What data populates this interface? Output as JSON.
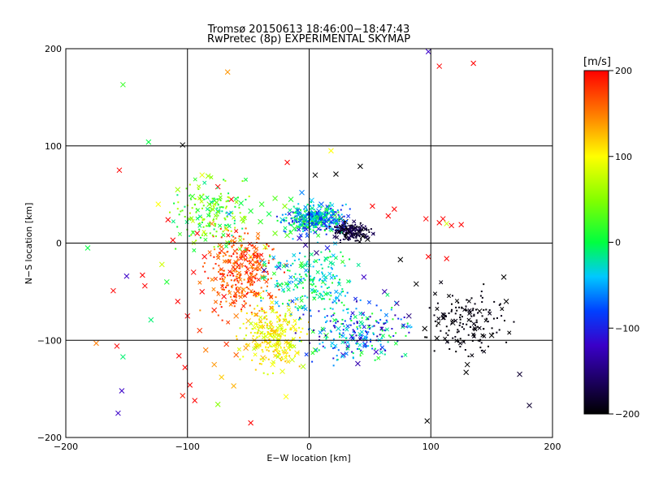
{
  "chart_data": {
    "type": "scatter",
    "title": "Tromsø 20150613 18:46:00−18:47:43",
    "subtitle": "RwPretec (8p) EXPERIMENTAL SKYMAP",
    "xlabel": "E−W location [km]",
    "ylabel": "N−S location [km]",
    "xlim": [
      -200,
      200
    ],
    "ylim": [
      -200,
      200
    ],
    "x_ticks": [
      -200,
      -100,
      0,
      100,
      200
    ],
    "y_ticks": [
      -200,
      -100,
      0,
      100,
      200
    ],
    "x_tick_labels": [
      "−200",
      "−100",
      "0",
      "100",
      "200"
    ],
    "y_tick_labels": [
      "−200",
      "−100",
      "0",
      "100",
      "200"
    ],
    "grid_lines": [
      -100,
      0,
      100
    ],
    "grid": true,
    "colorbar": {
      "unit_label": "[m/s]",
      "range": [
        -200,
        200
      ],
      "ticks": [
        200,
        100,
        0,
        -100,
        -200
      ],
      "tick_labels": [
        "200",
        "100",
        "0",
        "−100",
        "−200"
      ],
      "colormap": "rainbow (black-blue-cyan-green-yellow-red)"
    },
    "markers": [
      "x",
      "dot"
    ],
    "points": [
      {
        "x": -153,
        "y": 163,
        "v": 20,
        "m": "x"
      },
      {
        "x": -67,
        "y": 176,
        "v": 140,
        "m": "x"
      },
      {
        "x": -132,
        "y": 104,
        "v": 0,
        "m": "x"
      },
      {
        "x": -104,
        "y": 101,
        "v": -200,
        "m": "x"
      },
      {
        "x": -156,
        "y": 75,
        "v": 200,
        "m": "x"
      },
      {
        "x": 107,
        "y": 182,
        "v": 200,
        "m": "x"
      },
      {
        "x": 135,
        "y": 185,
        "v": 200,
        "m": "x"
      },
      {
        "x": 98,
        "y": 197,
        "v": -120,
        "m": "x"
      },
      {
        "x": -182,
        "y": -5,
        "v": 0,
        "m": "x"
      },
      {
        "x": -150,
        "y": -34,
        "v": -120,
        "m": "x"
      },
      {
        "x": -161,
        "y": -49,
        "v": 200,
        "m": "x"
      },
      {
        "x": -137,
        "y": -33,
        "v": 200,
        "m": "x"
      },
      {
        "x": -135,
        "y": -44,
        "v": 200,
        "m": "x"
      },
      {
        "x": -130,
        "y": -79,
        "v": -10,
        "m": "x"
      },
      {
        "x": -175,
        "y": -103,
        "v": 150,
        "m": "x"
      },
      {
        "x": -158,
        "y": -106,
        "v": 200,
        "m": "x"
      },
      {
        "x": -153,
        "y": -117,
        "v": -10,
        "m": "x"
      },
      {
        "x": -154,
        "y": -152,
        "v": -120,
        "m": "x"
      },
      {
        "x": -157,
        "y": -175,
        "v": -120,
        "m": "x"
      },
      {
        "x": -107,
        "y": -116,
        "v": 200,
        "m": "x"
      },
      {
        "x": -102,
        "y": -128,
        "v": 200,
        "m": "x"
      },
      {
        "x": -98,
        "y": -146,
        "v": 200,
        "m": "x"
      },
      {
        "x": -104,
        "y": -157,
        "v": 190,
        "m": "x"
      },
      {
        "x": -94,
        "y": -162,
        "v": 200,
        "m": "x"
      },
      {
        "x": -75,
        "y": -166,
        "v": 50,
        "m": "x"
      },
      {
        "x": -48,
        "y": -185,
        "v": 200,
        "m": "x"
      },
      {
        "x": -19,
        "y": -158,
        "v": 100,
        "m": "x"
      },
      {
        "x": 97,
        "y": -183,
        "v": -200,
        "m": "x"
      },
      {
        "x": 130,
        "y": -125,
        "v": -200,
        "m": "x"
      },
      {
        "x": 129,
        "y": -133,
        "v": -200,
        "m": "x"
      },
      {
        "x": 173,
        "y": -135,
        "v": -180,
        "m": "x"
      },
      {
        "x": 181,
        "y": -167,
        "v": -180,
        "m": "x"
      },
      {
        "x": 98,
        "y": -14,
        "v": 200,
        "m": "x"
      },
      {
        "x": 113,
        "y": -16,
        "v": 200,
        "m": "x"
      },
      {
        "x": 160,
        "y": -35,
        "v": -200,
        "m": "x"
      },
      {
        "x": 88,
        "y": -42,
        "v": -200,
        "m": "x"
      },
      {
        "x": 75,
        "y": -17,
        "v": -200,
        "m": "x"
      },
      {
        "x": 110,
        "y": 25,
        "v": 200,
        "m": "x"
      },
      {
        "x": 113,
        "y": 20,
        "v": 80,
        "m": "x"
      },
      {
        "x": 117,
        "y": 18,
        "v": 200,
        "m": "x"
      },
      {
        "x": 125,
        "y": 19,
        "v": 200,
        "m": "x"
      },
      {
        "x": 107,
        "y": 21,
        "v": 200,
        "m": "x"
      },
      {
        "x": 96,
        "y": 25,
        "v": 200,
        "m": "x"
      },
      {
        "x": 70,
        "y": 35,
        "v": 200,
        "m": "x"
      },
      {
        "x": 65,
        "y": 28,
        "v": 200,
        "m": "x"
      },
      {
        "x": 22,
        "y": 71,
        "v": -200,
        "m": "x"
      },
      {
        "x": 5,
        "y": 70,
        "v": -200,
        "m": "x"
      },
      {
        "x": 42,
        "y": 79,
        "v": -200,
        "m": "x"
      },
      {
        "x": 18,
        "y": 95,
        "v": 100,
        "m": "x"
      },
      {
        "x": -18,
        "y": 83,
        "v": 200,
        "m": "x"
      },
      {
        "x": -88,
        "y": 70,
        "v": 90,
        "m": "x"
      },
      {
        "x": -83,
        "y": 69,
        "v": 60,
        "m": "x"
      },
      {
        "x": -75,
        "y": 58,
        "v": 200,
        "m": "x"
      },
      {
        "x": -64,
        "y": 45,
        "v": 200,
        "m": "x"
      },
      {
        "x": -56,
        "y": 41,
        "v": 0,
        "m": "x"
      },
      {
        "x": -39,
        "y": 40,
        "v": 20,
        "m": "x"
      },
      {
        "x": -28,
        "y": 46,
        "v": 30,
        "m": "x"
      },
      {
        "x": -20,
        "y": 38,
        "v": 50,
        "m": "x"
      },
      {
        "x": -10,
        "y": 34,
        "v": -20,
        "m": "x"
      },
      {
        "x": -2,
        "y": 30,
        "v": -30,
        "m": "x"
      },
      {
        "x": 4,
        "y": 27,
        "v": -40,
        "m": "x"
      },
      {
        "x": 8,
        "y": 33,
        "v": -60,
        "m": "x"
      },
      {
        "x": 13,
        "y": 28,
        "v": -70,
        "m": "x"
      },
      {
        "x": 18,
        "y": 22,
        "v": -90,
        "m": "x"
      },
      {
        "x": 23,
        "y": 18,
        "v": -110,
        "m": "x"
      },
      {
        "x": 28,
        "y": 13,
        "v": -130,
        "m": "x"
      },
      {
        "x": 32,
        "y": 10,
        "v": -150,
        "m": "x"
      },
      {
        "x": 36,
        "y": 14,
        "v": -170,
        "m": "x"
      },
      {
        "x": 40,
        "y": 9,
        "v": -190,
        "m": "x"
      },
      {
        "x": 44,
        "y": 7,
        "v": -200,
        "m": "x"
      },
      {
        "x": 48,
        "y": 4,
        "v": -200,
        "m": "x"
      },
      {
        "x": 30,
        "y": 22,
        "v": -200,
        "m": "x"
      },
      {
        "x": 26,
        "y": 25,
        "v": -180,
        "m": "x"
      },
      {
        "x": 20,
        "y": 30,
        "v": -140,
        "m": "x"
      },
      {
        "x": -5,
        "y": 20,
        "v": -20,
        "m": "x"
      },
      {
        "x": -12,
        "y": 15,
        "v": 10,
        "m": "x"
      },
      {
        "x": -18,
        "y": 8,
        "v": 30,
        "m": "x"
      },
      {
        "x": -8,
        "y": 5,
        "v": -120,
        "m": "x"
      },
      {
        "x": -3,
        "y": -2,
        "v": -140,
        "m": "x"
      },
      {
        "x": 6,
        "y": -10,
        "v": -150,
        "m": "x"
      },
      {
        "x": 15,
        "y": -5,
        "v": -100,
        "m": "x"
      },
      {
        "x": -25,
        "y": -25,
        "v": -110,
        "m": "x"
      },
      {
        "x": -37,
        "y": -28,
        "v": -140,
        "m": "x"
      },
      {
        "x": -24,
        "y": -43,
        "v": -10,
        "m": "x"
      },
      {
        "x": -41,
        "y": -53,
        "v": 100,
        "m": "x"
      },
      {
        "x": -54,
        "y": -48,
        "v": 140,
        "m": "x"
      },
      {
        "x": -62,
        "y": -60,
        "v": 170,
        "m": "x"
      },
      {
        "x": -70,
        "y": -55,
        "v": 200,
        "m": "x"
      },
      {
        "x": -78,
        "y": -69,
        "v": 190,
        "m": "x"
      },
      {
        "x": -60,
        "y": -75,
        "v": 150,
        "m": "x"
      },
      {
        "x": -50,
        "y": -80,
        "v": 130,
        "m": "x"
      },
      {
        "x": -40,
        "y": -86,
        "v": 110,
        "m": "x"
      },
      {
        "x": -32,
        "y": -95,
        "v": 100,
        "m": "x"
      },
      {
        "x": -25,
        "y": -100,
        "v": 90,
        "m": "x"
      },
      {
        "x": -17,
        "y": -108,
        "v": 100,
        "m": "x"
      },
      {
        "x": -10,
        "y": -113,
        "v": 110,
        "m": "x"
      },
      {
        "x": -45,
        "y": -100,
        "v": 120,
        "m": "x"
      },
      {
        "x": -52,
        "y": -108,
        "v": 140,
        "m": "x"
      },
      {
        "x": -60,
        "y": -115,
        "v": 160,
        "m": "x"
      },
      {
        "x": -68,
        "y": -104,
        "v": 180,
        "m": "x"
      },
      {
        "x": -38,
        "y": -118,
        "v": 130,
        "m": "x"
      },
      {
        "x": -30,
        "y": -125,
        "v": 100,
        "m": "x"
      },
      {
        "x": -22,
        "y": -132,
        "v": 90,
        "m": "x"
      },
      {
        "x": -14,
        "y": -120,
        "v": 80,
        "m": "x"
      },
      {
        "x": -5,
        "y": -127,
        "v": 70,
        "m": "x"
      },
      {
        "x": 5,
        "y": -110,
        "v": 40,
        "m": "x"
      },
      {
        "x": 14,
        "y": -95,
        "v": 20,
        "m": "x"
      },
      {
        "x": 24,
        "y": -88,
        "v": -30,
        "m": "x"
      },
      {
        "x": 35,
        "y": -96,
        "v": -90,
        "m": "x"
      },
      {
        "x": 46,
        "y": -104,
        "v": -110,
        "m": "x"
      },
      {
        "x": 28,
        "y": -115,
        "v": -120,
        "m": "x"
      },
      {
        "x": 40,
        "y": -124,
        "v": -130,
        "m": "x"
      },
      {
        "x": 55,
        "y": -112,
        "v": -120,
        "m": "x"
      },
      {
        "x": -88,
        "y": -50,
        "v": 200,
        "m": "x"
      },
      {
        "x": -95,
        "y": -30,
        "v": 200,
        "m": "x"
      },
      {
        "x": -86,
        "y": -14,
        "v": 200,
        "m": "x"
      },
      {
        "x": -72,
        "y": -8,
        "v": 180,
        "m": "x"
      },
      {
        "x": -60,
        "y": -20,
        "v": 160,
        "m": "x"
      },
      {
        "x": -48,
        "y": -14,
        "v": 120,
        "m": "x"
      },
      {
        "x": -36,
        "y": -4,
        "v": 80,
        "m": "x"
      },
      {
        "x": -28,
        "y": 10,
        "v": 40,
        "m": "x"
      },
      {
        "x": -40,
        "y": 22,
        "v": 20,
        "m": "x"
      },
      {
        "x": -55,
        "y": 25,
        "v": 60,
        "m": "x"
      },
      {
        "x": -68,
        "y": 15,
        "v": 120,
        "m": "x"
      },
      {
        "x": -80,
        "y": 20,
        "v": 150,
        "m": "x"
      },
      {
        "x": -92,
        "y": 10,
        "v": 200,
        "m": "x"
      },
      {
        "x": -112,
        "y": 3,
        "v": 200,
        "m": "x"
      },
      {
        "x": -121,
        "y": -22,
        "v": 80,
        "m": "x"
      },
      {
        "x": -117,
        "y": -40,
        "v": 10,
        "m": "x"
      },
      {
        "x": -108,
        "y": -60,
        "v": 200,
        "m": "x"
      },
      {
        "x": -100,
        "y": -75,
        "v": 200,
        "m": "x"
      },
      {
        "x": -90,
        "y": -90,
        "v": 180,
        "m": "x"
      },
      {
        "x": -85,
        "y": -110,
        "v": 150,
        "m": "x"
      },
      {
        "x": -78,
        "y": -125,
        "v": 140,
        "m": "x"
      },
      {
        "x": -72,
        "y": -138,
        "v": 120,
        "m": "x"
      },
      {
        "x": -62,
        "y": -147,
        "v": 130,
        "m": "x"
      },
      {
        "x": -116,
        "y": 24,
        "v": 200,
        "m": "x"
      },
      {
        "x": -124,
        "y": 40,
        "v": 100,
        "m": "x"
      },
      {
        "x": -108,
        "y": 55,
        "v": 60,
        "m": "x"
      },
      {
        "x": -96,
        "y": 48,
        "v": 20,
        "m": "x"
      },
      {
        "x": -82,
        "y": 40,
        "v": 40,
        "m": "x"
      },
      {
        "x": -75,
        "y": 33,
        "v": -20,
        "m": "x"
      },
      {
        "x": -66,
        "y": 30,
        "v": -60,
        "m": "x"
      },
      {
        "x": -48,
        "y": 33,
        "v": 10,
        "m": "x"
      },
      {
        "x": -33,
        "y": 30,
        "v": 0,
        "m": "x"
      },
      {
        "x": -22,
        "y": 24,
        "v": -30,
        "m": "x"
      },
      {
        "x": -15,
        "y": 45,
        "v": 10,
        "m": "x"
      },
      {
        "x": -6,
        "y": 52,
        "v": -60,
        "m": "x"
      },
      {
        "x": 2,
        "y": 44,
        "v": -40,
        "m": "x"
      },
      {
        "x": 10,
        "y": 40,
        "v": -70,
        "m": "x"
      },
      {
        "x": 52,
        "y": 38,
        "v": 200,
        "m": "x"
      },
      {
        "x": 45,
        "y": -35,
        "v": -120,
        "m": "x"
      },
      {
        "x": 62,
        "y": -50,
        "v": -130,
        "m": "x"
      },
      {
        "x": 72,
        "y": -62,
        "v": -140,
        "m": "x"
      },
      {
        "x": 82,
        "y": -75,
        "v": -150,
        "m": "x"
      },
      {
        "x": 95,
        "y": -88,
        "v": -200,
        "m": "x"
      },
      {
        "x": 105,
        "y": -98,
        "v": -200,
        "m": "x"
      },
      {
        "x": 118,
        "y": -82,
        "v": -200,
        "m": "x"
      },
      {
        "x": 140,
        "y": -70,
        "v": -200,
        "m": "x"
      },
      {
        "x": 150,
        "y": -95,
        "v": -200,
        "m": "x"
      },
      {
        "x": 162,
        "y": -60,
        "v": -200,
        "m": "x"
      }
    ]
  }
}
